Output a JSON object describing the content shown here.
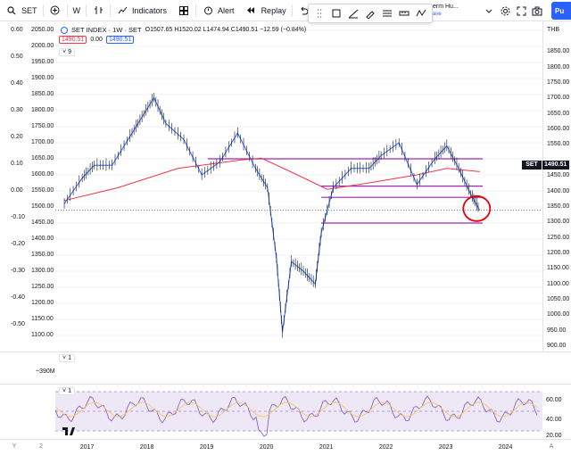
{
  "toolbar": {
    "symbol": "SET",
    "interval": "W",
    "indicators_label": "Indicators",
    "alert_label": "Alert",
    "replay_label": "Replay",
    "study_name": "erm Hu...",
    "study_sub": "ave",
    "publish_label": "Pu"
  },
  "legend": {
    "title": "SET INDEX · 1W · SET",
    "ohlc": "O1507.65 H1520.02 L1474.94 C1490.51 −12.59 (−0.84%)",
    "indicator_value_1": "1490.51",
    "indicator_value_2": "0.00",
    "indicator_value_3": "1490.51",
    "collapse_count": "9"
  },
  "percent_scale": [
    "0.60",
    "0.50",
    "0.40",
    "0.30",
    "0.20",
    "0.10",
    "0.00",
    "-0.10",
    "-0.20",
    "-0.30",
    "-0.40",
    "-0.50"
  ],
  "price_scale": {
    "currency": "THB",
    "labels": [
      "1850.00",
      "1800.00",
      "1750.00",
      "1700.00",
      "1650.00",
      "1600.00",
      "1550.00",
      "1450.00",
      "1400.00",
      "1350.00",
      "1300.00",
      "1250.00",
      "1200.00",
      "1150.00",
      "1100.00",
      "1050.00",
      "1000.00",
      "950.00",
      "900.00"
    ],
    "current_price": "1490.51",
    "symbol_tag": "SET"
  },
  "left_price_labels": [
    "2050.00",
    "2000.00",
    "1950.00",
    "1900.00",
    "1850.00",
    "1800.00",
    "1750.00",
    "1700.00",
    "1650.00",
    "1600.00",
    "1550.00",
    "1500.00",
    "1450.00",
    "1400.00",
    "1350.00",
    "1300.00",
    "1250.00",
    "1200.00",
    "1150.00",
    "1100.00"
  ],
  "volume": {
    "collapse_count": "1",
    "value": "~390M"
  },
  "rsi": {
    "collapse_count": "1",
    "levels": [
      "60.00",
      "40.00",
      "20.00"
    ]
  },
  "time_axis": {
    "years": [
      "2017",
      "2018",
      "2019",
      "2020",
      "2021",
      "2022",
      "2023",
      "2024"
    ],
    "left_button": "Y",
    "left_button_2": "2",
    "right_button": "A"
  },
  "chart_data": {
    "type": "line",
    "title": "SET INDEX · 1W · SET",
    "series": [
      {
        "name": "",
        "x": [
          2016.6,
          2016.9,
          2017.1,
          2017.4,
          2017.7,
          2017.9,
          2018.1,
          2018.3,
          2018.6,
          2018.9,
          2019.2,
          2019.5,
          2019.8,
          2020.0,
          2020.15,
          2020.25,
          2020.4,
          2020.6,
          2020.8,
          2020.9,
          2021.1,
          2021.4,
          2021.7,
          2021.9,
          2022.2,
          2022.5,
          2022.8,
          2023.0,
          2023.2,
          2023.4,
          2023.55
        ],
        "values": [
          1510,
          1590,
          1630,
          1630,
          1720,
          1780,
          1840,
          1760,
          1710,
          1600,
          1640,
          1730,
          1620,
          1560,
          1340,
          1110,
          1330,
          1300,
          1260,
          1420,
          1560,
          1620,
          1620,
          1660,
          1700,
          1570,
          1650,
          1690,
          1620,
          1540,
          1490
        ]
      },
      {
        "name": "",
        "x": [
          2016.6,
          2017.5,
          2018.5,
          2019.5,
          2019.9,
          2020.5,
          2021.0,
          2021.7,
          2022.5,
          2023.0,
          2023.55
        ],
        "values": [
          1520,
          1560,
          1620,
          1645,
          1652,
          1600,
          1555,
          1575,
          1600,
          1620,
          1610
        ]
      }
    ],
    "horizontal_lines": [
      1650,
      1565,
      1530,
      1450
    ],
    "ylim": [
      1100,
      2050
    ]
  }
}
